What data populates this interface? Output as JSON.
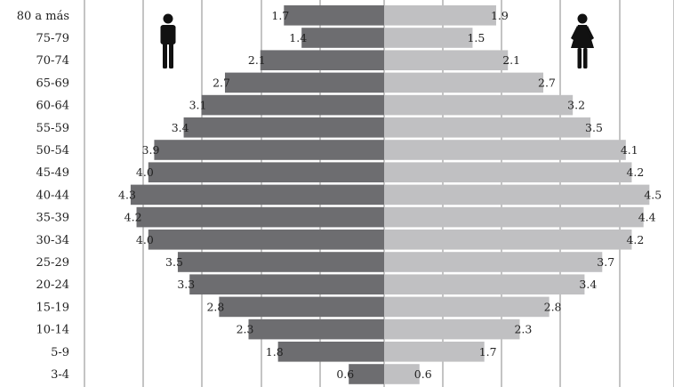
{
  "chart_data": {
    "type": "bar",
    "orientation": "horizontal",
    "subtype": "population-pyramid",
    "categories": [
      "80 a más",
      "75-79",
      "70-74",
      "65-69",
      "60-64",
      "55-59",
      "50-54",
      "45-49",
      "40-44",
      "35-39",
      "30-34",
      "25-29",
      "20-24",
      "15-19",
      "10-14",
      "5-9",
      "3-4"
    ],
    "series": [
      {
        "values": [
          1.7,
          1.4,
          2.1,
          2.7,
          3.1,
          3.4,
          3.9,
          4.0,
          4.3,
          4.2,
          4.0,
          3.5,
          3.3,
          2.8,
          2.3,
          1.8,
          0.6
        ],
        "labels": [
          "1.7",
          "1.4",
          "2.1",
          "2.7",
          "3.1",
          "3.4",
          "3.9",
          "4.0",
          "4.3",
          "4.2",
          "4.0",
          "3.5",
          "3.3",
          "2.8",
          "2.3",
          "1.8",
          "0.6"
        ],
        "color": "#6d6d70",
        "side": "left",
        "icon": "male-icon"
      },
      {
        "values": [
          1.9,
          1.5,
          2.1,
          2.7,
          3.2,
          3.5,
          4.1,
          4.2,
          4.5,
          4.4,
          4.2,
          3.7,
          3.4,
          2.8,
          2.3,
          1.7,
          0.6
        ],
        "labels": [
          "1.9",
          "1.5",
          "2.1",
          "2.7",
          "3.2",
          "3.5",
          "4.1",
          "4.2",
          "4.5",
          "4.4",
          "4.2",
          "3.7",
          "3.4",
          "2.8",
          "2.3",
          "1.7",
          "0.6"
        ],
        "color": "#c0c0c2",
        "side": "right",
        "icon": "female-icon"
      }
    ],
    "grid": true,
    "legend": "icons-top"
  }
}
